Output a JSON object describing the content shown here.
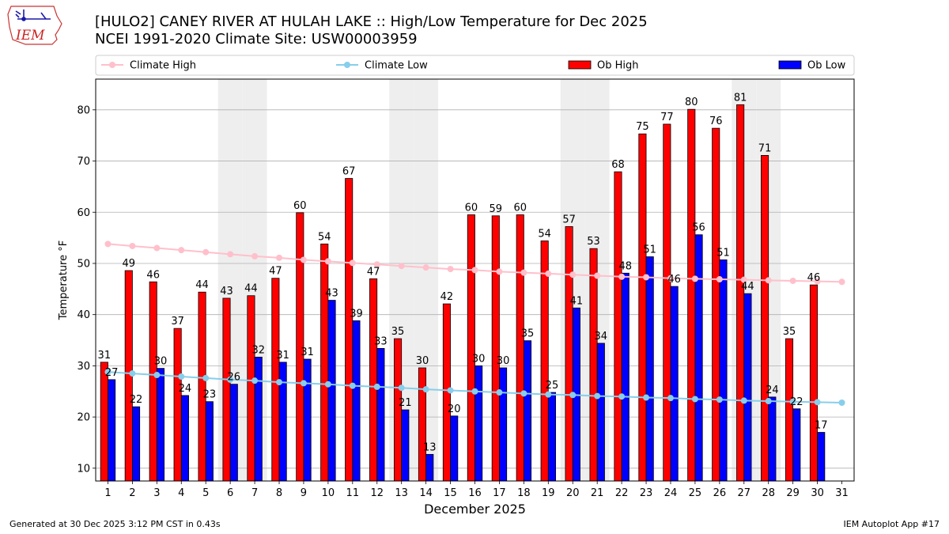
{
  "logo": {
    "text": "IEM"
  },
  "title": "[HULO2] CANEY RIVER  AT HULAH LAKE :: High/Low Temperature for Dec 2025",
  "subtitle": "NCEI 1991-2020 Climate Site: USW00003959",
  "footer": {
    "left": "Generated at 30 Dec 2025 3:12 PM CST in 0.43s",
    "right": "IEM Autoplot App #17"
  },
  "colors": {
    "ob_high": "#ff0000",
    "ob_low": "#0000ff",
    "climate_high": "#ffc0cb",
    "climate_low": "#87ceeb",
    "weekend_band": "#eeeeee",
    "grid": "#b0b0b0"
  },
  "chart_data": {
    "type": "bar",
    "xlabel": "December 2025",
    "ylabel": "Temperature °F",
    "ylim": [
      7.5,
      86
    ],
    "xlim": [
      0.5,
      31.5
    ],
    "yticks": [
      10,
      20,
      30,
      40,
      50,
      60,
      70,
      80
    ],
    "grid": true,
    "legend_placement": "top",
    "categories": [
      "1",
      "2",
      "3",
      "4",
      "5",
      "6",
      "7",
      "8",
      "9",
      "10",
      "11",
      "12",
      "13",
      "14",
      "15",
      "16",
      "17",
      "18",
      "19",
      "20",
      "21",
      "22",
      "23",
      "24",
      "25",
      "26",
      "27",
      "28",
      "29",
      "30",
      "31"
    ],
    "shaded_days": [
      6,
      7,
      13,
      14,
      20,
      21,
      27,
      28
    ],
    "series": [
      {
        "name": "Climate High",
        "kind": "line",
        "color": "#ffc0cb",
        "values": [
          53.8,
          53.4,
          53.0,
          52.6,
          52.2,
          51.8,
          51.4,
          51.1,
          50.7,
          50.4,
          50.1,
          49.8,
          49.5,
          49.2,
          48.9,
          48.7,
          48.4,
          48.2,
          48.0,
          47.8,
          47.6,
          47.4,
          47.3,
          47.1,
          47.0,
          46.9,
          46.8,
          46.7,
          46.6,
          46.5,
          46.4
        ]
      },
      {
        "name": "Climate Low",
        "kind": "line",
        "color": "#87ceeb",
        "values": [
          28.8,
          28.5,
          28.2,
          27.9,
          27.6,
          27.3,
          27.1,
          26.8,
          26.6,
          26.4,
          26.1,
          25.9,
          25.7,
          25.4,
          25.2,
          25.0,
          24.8,
          24.6,
          24.4,
          24.3,
          24.1,
          24.0,
          23.8,
          23.7,
          23.5,
          23.4,
          23.2,
          23.1,
          23.0,
          22.9,
          22.8
        ]
      },
      {
        "name": "Ob High",
        "kind": "bar",
        "color": "#ff0000",
        "values": [
          30.7,
          48.6,
          46.4,
          37.3,
          44.4,
          43.2,
          43.7,
          47.1,
          59.9,
          53.8,
          66.6,
          47.0,
          35.3,
          29.6,
          42.1,
          59.5,
          59.3,
          59.5,
          54.4,
          57.2,
          52.9,
          67.9,
          75.3,
          77.2,
          80.1,
          76.4,
          81.0,
          71.1,
          35.3,
          45.8,
          null
        ],
        "labels": [
          "31",
          "49",
          "46",
          "37",
          "44",
          "43",
          "44",
          "47",
          "60",
          "54",
          "67",
          "47",
          "35",
          "30",
          "42",
          "60",
          "59",
          "60",
          "54",
          "57",
          "53",
          "68",
          "75",
          "77",
          "80",
          "76",
          "81",
          "71",
          "35",
          "46",
          ""
        ]
      },
      {
        "name": "Ob Low",
        "kind": "bar",
        "color": "#0000ff",
        "values": [
          27.3,
          22.0,
          29.5,
          24.2,
          23.0,
          26.4,
          31.7,
          30.7,
          31.3,
          42.8,
          38.8,
          33.4,
          21.4,
          12.7,
          20.2,
          30.0,
          29.6,
          34.9,
          24.8,
          41.3,
          34.4,
          48.1,
          51.3,
          45.5,
          55.6,
          50.7,
          44.1,
          23.9,
          21.6,
          17.0,
          null
        ],
        "labels": [
          "27",
          "22",
          "30",
          "24",
          "23",
          "26",
          "32",
          "31",
          "31",
          "43",
          "39",
          "33",
          "21",
          "13",
          "20",
          "30",
          "30",
          "35",
          "25",
          "41",
          "34",
          "48",
          "51",
          "46",
          "56",
          "51",
          "44",
          "24",
          "22",
          "17",
          ""
        ]
      }
    ]
  }
}
